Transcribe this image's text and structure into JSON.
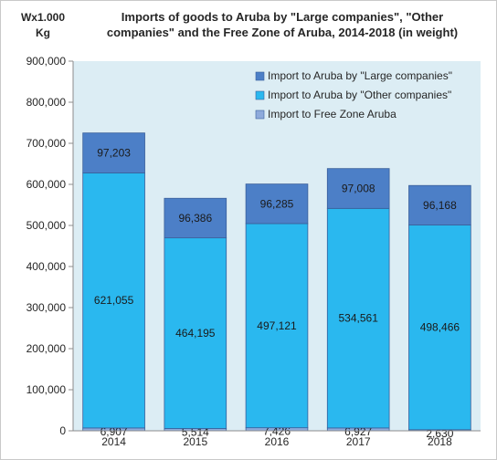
{
  "chart_data": {
    "type": "bar",
    "stacked": true,
    "title": "Imports of goods to Aruba by \"Large companies\", \"Other companies\" and the Free Zone of Aruba, 2014-2018 (in weight)",
    "title_lines": [
      "Imports of goods to Aruba by \"Large companies\", \"Other",
      "companies\" and the Free Zone of Aruba, 2014-2018 (in weight)"
    ],
    "unit_label_lines": [
      "Wx1.000",
      "Kg"
    ],
    "xlabel": "",
    "ylabel": "",
    "ylim": [
      0,
      900000
    ],
    "y_ticks": [
      0,
      100000,
      200000,
      300000,
      400000,
      500000,
      600000,
      700000,
      800000,
      900000
    ],
    "y_tick_labels": [
      "0",
      "100,000",
      "200,000",
      "300,000",
      "400,000",
      "500,000",
      "600,000",
      "700,000",
      "800,000",
      "900,000"
    ],
    "categories": [
      "2014",
      "2015",
      "2016",
      "2017",
      "2018"
    ],
    "grid": false,
    "legend_position": "top-right",
    "plot_background": "#dcedf4",
    "series": [
      {
        "name": "Import to Free Zone Aruba",
        "color": "#8eaadb",
        "values": [
          6907,
          5514,
          7426,
          6927,
          2630
        ],
        "labels": [
          "6,907",
          "5,514",
          "7,426",
          "6,927",
          "2,630"
        ]
      },
      {
        "name": "Import to Aruba by \"Other companies\"",
        "color": "#2ab8ef",
        "values": [
          621055,
          464195,
          497121,
          534561,
          498466
        ],
        "labels": [
          "621,055",
          "464,195",
          "497,121",
          "534,561",
          "498,466"
        ]
      },
      {
        "name": "Import to Aruba by \"Large companies\"",
        "color": "#4c7fc7",
        "values": [
          97203,
          96386,
          96285,
          97008,
          96168
        ],
        "labels": [
          "97,203",
          "96,386",
          "96,285",
          "97,008",
          "96,168"
        ]
      }
    ],
    "legend_order": [
      2,
      1,
      0
    ]
  }
}
